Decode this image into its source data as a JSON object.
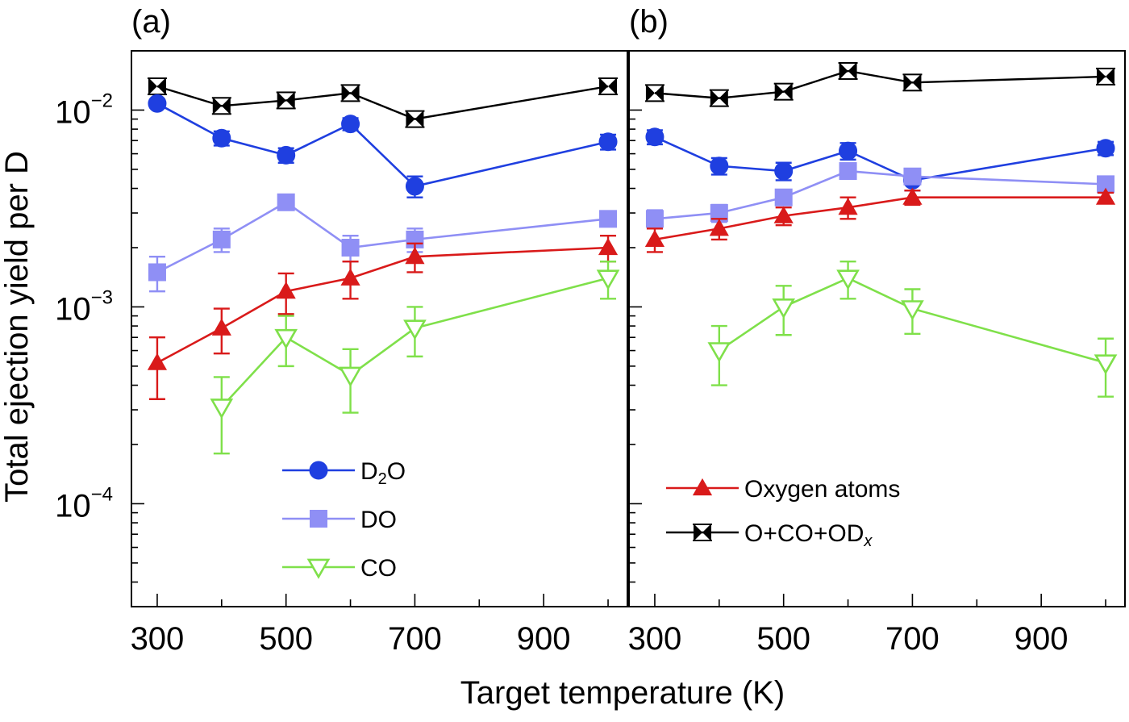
{
  "chart_data": {
    "type": "line",
    "x_label": "Target temperature (K)",
    "y_label": "Total ejection yield per D",
    "y_scale": "log",
    "ylim": [
      3e-05,
      0.02
    ],
    "xlim": [
      260,
      1030
    ],
    "x_ticks": [
      300,
      500,
      700,
      900
    ],
    "x_tick_labels": [
      "300",
      "500",
      "700",
      "900"
    ],
    "y_ticks": [
      0.0001,
      0.001,
      0.01
    ],
    "y_tick_labels": [
      {
        "base": "10",
        "exp": "−4"
      },
      {
        "base": "10",
        "exp": "−3"
      },
      {
        "base": "10",
        "exp": "−2"
      }
    ],
    "panels": [
      {
        "label": "(a)",
        "legend": [
          {
            "series": "D2O",
            "text": "D",
            "sub": "2",
            "rest": "O"
          },
          {
            "series": "DO",
            "text": "DO"
          },
          {
            "series": "CO",
            "text": "CO"
          }
        ],
        "series": [
          {
            "key": "total",
            "color": "#000000",
            "marker": "bowtie",
            "x": [
              300,
              400,
              500,
              600,
              700,
              1000
            ],
            "y": [
              0.0132,
              0.0105,
              0.0112,
              0.0122,
              0.009,
              0.0132
            ],
            "err": [
              null,
              null,
              null,
              null,
              null,
              null
            ]
          },
          {
            "key": "D2O",
            "color": "#1f3fe0",
            "marker": "circle",
            "x": [
              300,
              400,
              500,
              600,
              700,
              1000
            ],
            "y": [
              0.0108,
              0.0072,
              0.0059,
              0.0085,
              0.0041,
              0.0069
            ],
            "err": [
              0.0005,
              0.0006,
              0.0005,
              0.0006,
              0.0005,
              0.0006
            ]
          },
          {
            "key": "DO",
            "color": "#8f8ff5",
            "marker": "square",
            "x": [
              300,
              400,
              500,
              600,
              700,
              1000
            ],
            "y": [
              0.0015,
              0.0022,
              0.0034,
              0.002,
              0.0022,
              0.0028
            ],
            "err": [
              0.0003,
              0.0003,
              0.0002,
              0.0003,
              0.0003,
              0.0002
            ]
          },
          {
            "key": "O",
            "color": "#d91a1a",
            "marker": "triangle",
            "x": [
              300,
              400,
              500,
              600,
              700,
              1000
            ],
            "y": [
              0.00052,
              0.00078,
              0.0012,
              0.0014,
              0.0018,
              0.002
            ],
            "err": [
              0.00018,
              0.0002,
              0.00028,
              0.0003,
              0.0003,
              0.0003
            ]
          },
          {
            "key": "CO",
            "color": "#7fe04a",
            "marker": "triangle-down",
            "x": [
              400,
              500,
              600,
              700,
              1000
            ],
            "y": [
              0.00031,
              0.0007,
              0.00045,
              0.00078,
              0.0014
            ],
            "err": [
              0.00013,
              0.0002,
              0.00016,
              0.00022,
              0.0003
            ]
          }
        ]
      },
      {
        "label": "(b)",
        "legend": [
          {
            "series": "O",
            "text": "Oxygen atoms"
          },
          {
            "series": "total",
            "text": "O+CO+OD",
            "sub": "x"
          }
        ],
        "series": [
          {
            "key": "total",
            "color": "#000000",
            "marker": "bowtie",
            "x": [
              300,
              400,
              500,
              600,
              700,
              1000
            ],
            "y": [
              0.0122,
              0.0115,
              0.0124,
              0.0158,
              0.0138,
              0.0148
            ],
            "err": [
              null,
              null,
              null,
              null,
              null,
              null
            ]
          },
          {
            "key": "D2O",
            "color": "#1f3fe0",
            "marker": "circle",
            "x": [
              300,
              400,
              500,
              600,
              700,
              1000
            ],
            "y": [
              0.0073,
              0.0052,
              0.0049,
              0.0062,
              0.0044,
              0.0064
            ],
            "err": [
              0.0006,
              0.0005,
              0.0005,
              0.0006,
              0.0005,
              0.0005
            ]
          },
          {
            "key": "DO",
            "color": "#8f8ff5",
            "marker": "square",
            "x": [
              300,
              400,
              500,
              600,
              700,
              1000
            ],
            "y": [
              0.0028,
              0.003,
              0.0036,
              0.0049,
              0.0046,
              0.0042
            ],
            "err": [
              0.0003,
              0.0003,
              0.0003,
              0.0004,
              0.0003,
              0.0003
            ]
          },
          {
            "key": "O",
            "color": "#d91a1a",
            "marker": "triangle",
            "x": [
              300,
              400,
              500,
              600,
              700,
              1000
            ],
            "y": [
              0.0022,
              0.0025,
              0.0029,
              0.0032,
              0.0036,
              0.0036
            ],
            "err": [
              0.0003,
              0.0003,
              0.0003,
              0.0004,
              0.0003,
              0.0002
            ]
          },
          {
            "key": "CO",
            "color": "#7fe04a",
            "marker": "triangle-down",
            "x": [
              400,
              500,
              600,
              700,
              1000
            ],
            "y": [
              0.0006,
              0.001,
              0.0014,
              0.00098,
              0.00052
            ],
            "err": [
              0.0002,
              0.00028,
              0.0003,
              0.00025,
              0.00017
            ]
          }
        ]
      }
    ]
  }
}
